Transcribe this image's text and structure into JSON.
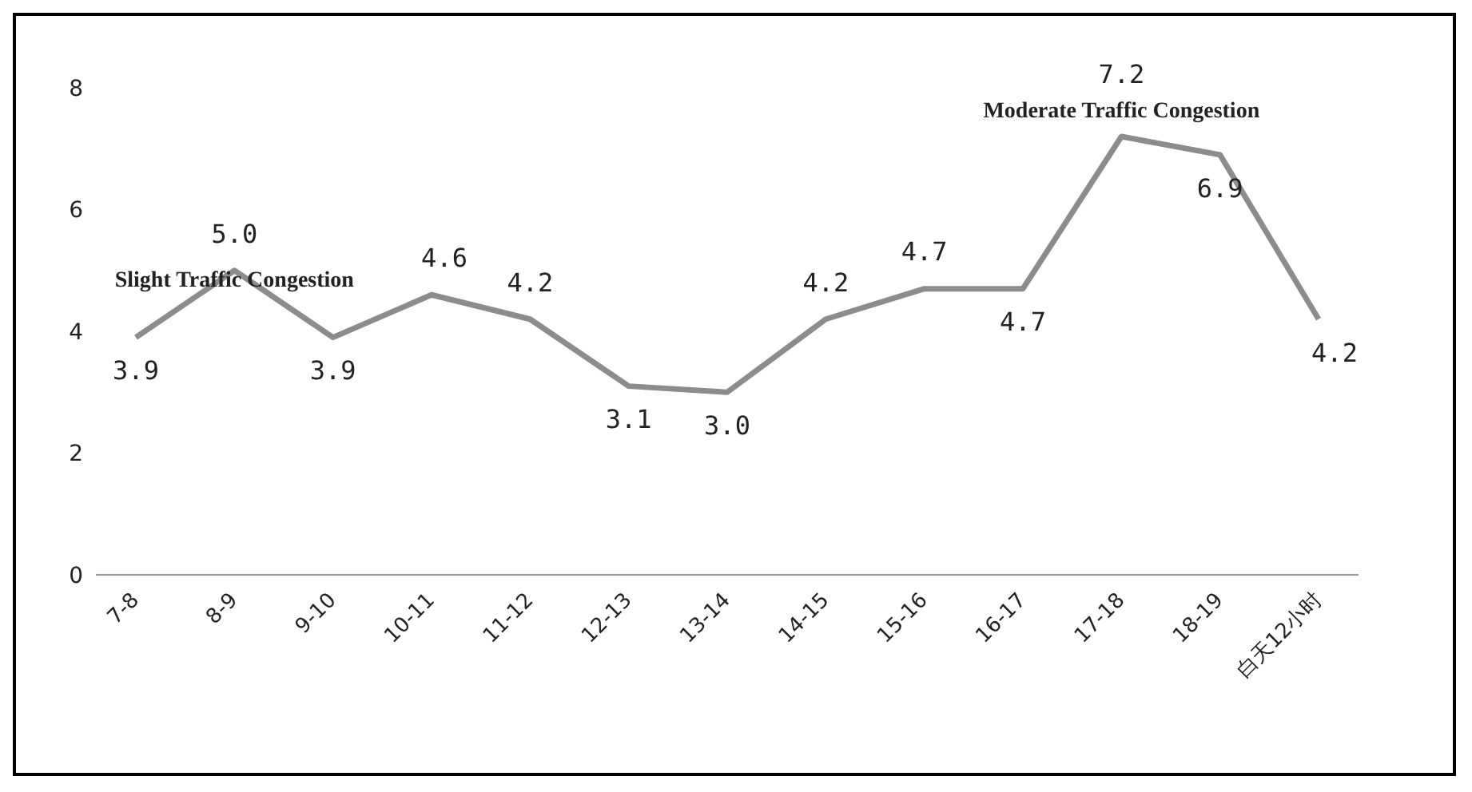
{
  "chart_data": {
    "type": "line",
    "categories": [
      "7-8",
      "8-9",
      "9-10",
      "10-11",
      "11-12",
      "12-13",
      "13-14",
      "14-15",
      "15-16",
      "16-17",
      "17-18",
      "18-19",
      "白天12小时"
    ],
    "series": [
      {
        "color": "#8c8c8c",
        "values": [
          3.9,
          5.0,
          3.9,
          4.6,
          4.2,
          3.1,
          3.0,
          4.2,
          4.7,
          4.7,
          7.2,
          6.9,
          4.2
        ],
        "value_labels": [
          "3.9",
          "5.0",
          "3.9",
          "4.6",
          "4.2",
          "3.1",
          "3.0",
          "4.2",
          "4.7",
          "4.7",
          "7.2",
          "6.9",
          "4.2"
        ]
      }
    ],
    "ylim": [
      0,
      8
    ],
    "yticks": [
      0,
      2,
      4,
      6,
      8
    ],
    "grid": false,
    "legend": false,
    "marker": "none",
    "line_style": "solid",
    "annotations": [
      {
        "text": "Slight Traffic Congestion",
        "x": "8-9",
        "y": 5.0
      },
      {
        "text": "Moderate Traffic Congestion",
        "x": "17-18",
        "y": 7.2
      }
    ]
  }
}
